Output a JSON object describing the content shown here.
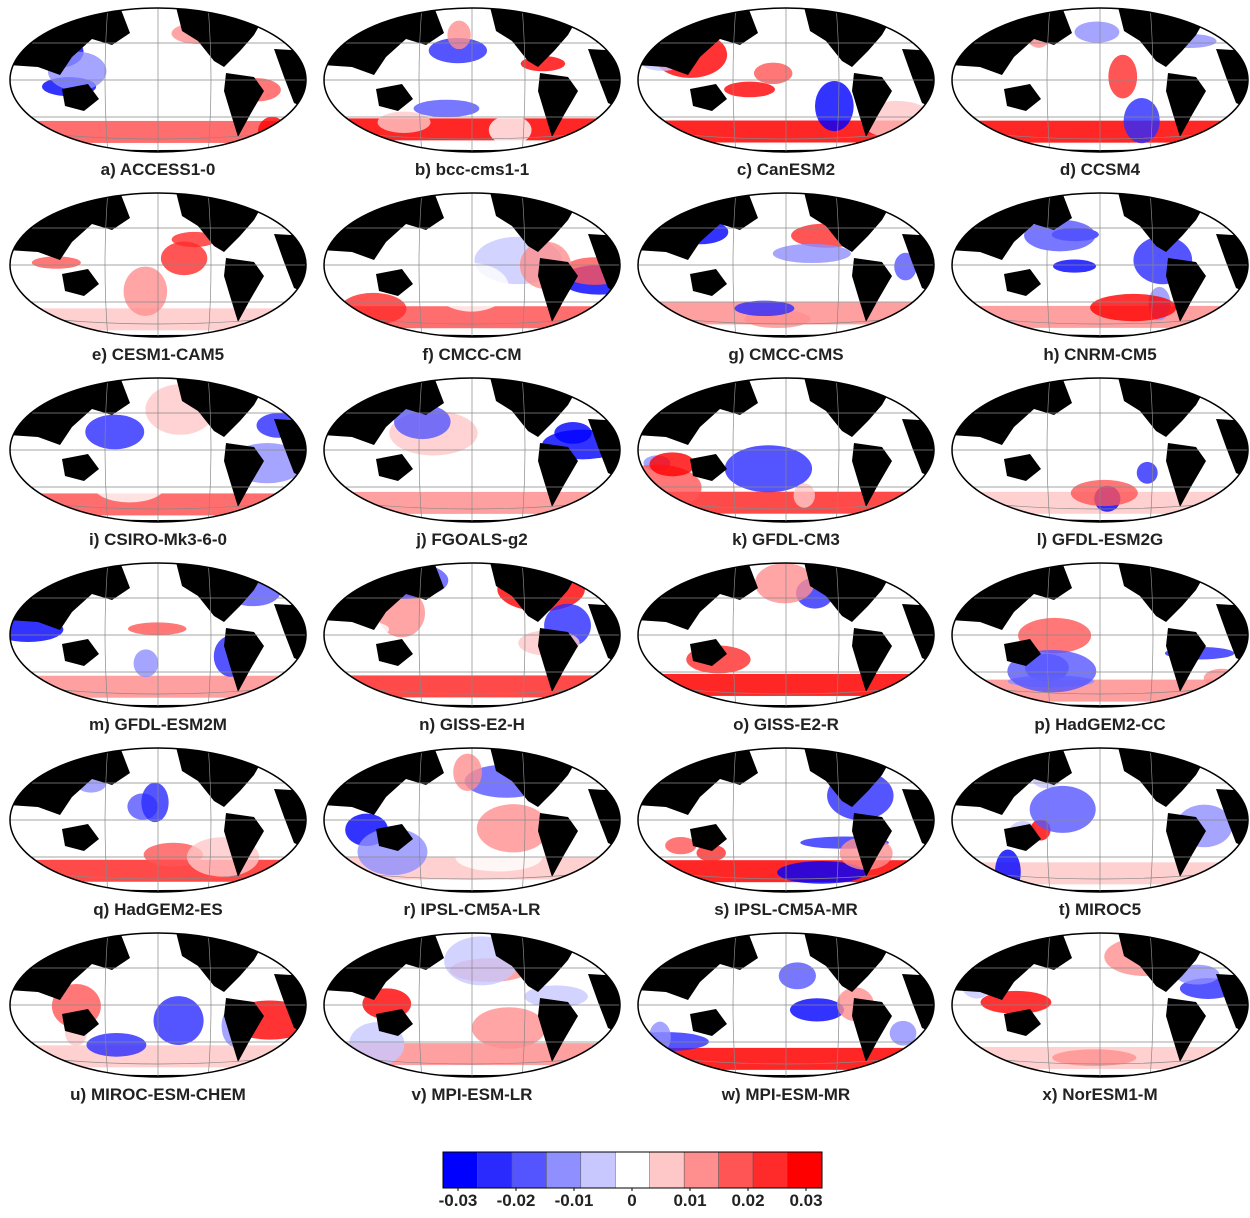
{
  "panels": [
    {
      "label": "a) ACCESS1-0"
    },
    {
      "label": "b) bcc-cms1-1"
    },
    {
      "label": "c) CanESM2"
    },
    {
      "label": "d) CCSM4"
    },
    {
      "label": "e) CESM1-CAM5"
    },
    {
      "label": "f) CMCC-CM"
    },
    {
      "label": "g) CMCC-CMS"
    },
    {
      "label": "h) CNRM-CM5"
    },
    {
      "label": "i) CSIRO-Mk3-6-0"
    },
    {
      "label": "j) FGOALS-g2"
    },
    {
      "label": "k) GFDL-CM3"
    },
    {
      "label": "l) GFDL-ESM2G"
    },
    {
      "label": "m) GFDL-ESM2M"
    },
    {
      "label": "n) GISS-E2-H"
    },
    {
      "label": "o) GISS-E2-R"
    },
    {
      "label": "p) HadGEM2-CC"
    },
    {
      "label": "q) HadGEM2-ES"
    },
    {
      "label": "r) IPSL-CM5A-LR"
    },
    {
      "label": "s) IPSL-CM5A-MR"
    },
    {
      "label": "t) MIROC5"
    },
    {
      "label": "u) MIROC-ESM-CHEM"
    },
    {
      "label": "v) MPI-ESM-LR"
    },
    {
      "label": "w) MPI-ESM-MR"
    },
    {
      "label": "x) NorESM1-M"
    }
  ],
  "colorbar": {
    "colors": [
      "#0000ff",
      "#2a2aff",
      "#5555ff",
      "#8f8fff",
      "#c8c8ff",
      "#ffffff",
      "#ffc8c8",
      "#ff8f8f",
      "#ff5555",
      "#ff2a2a",
      "#ff0000"
    ],
    "ticks": [
      -0.03,
      -0.02,
      -0.01,
      0,
      0.01,
      0.02,
      0.03
    ]
  }
}
